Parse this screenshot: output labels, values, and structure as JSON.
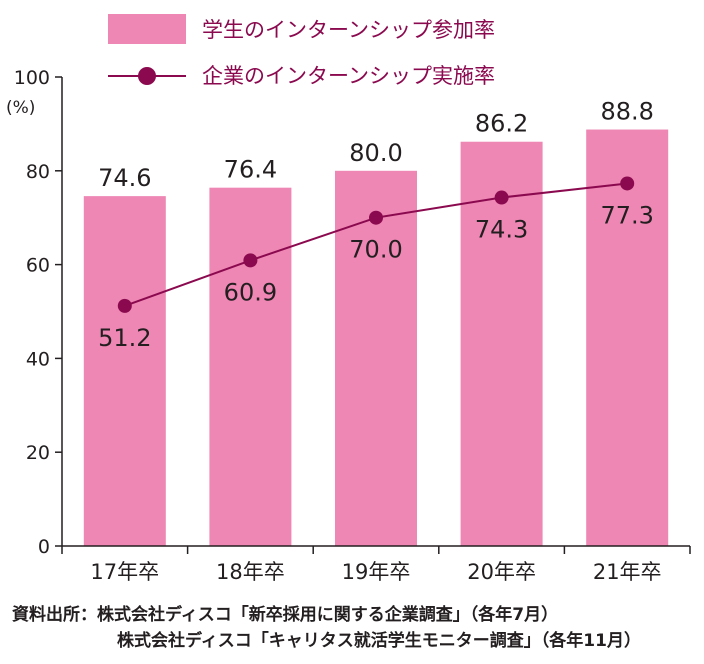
{
  "chart_data": {
    "type": "bar",
    "categories": [
      "17年卒",
      "18年卒",
      "19年卒",
      "20年卒",
      "21年卒"
    ],
    "series": [
      {
        "name": "学生のインターンシップ参加率",
        "type": "bar",
        "values": [
          74.6,
          76.4,
          80.0,
          86.2,
          88.8
        ],
        "color": "#ee87b4"
      },
      {
        "name": "企業のインターンシップ実施率",
        "type": "line",
        "values": [
          51.2,
          60.9,
          70.0,
          74.3,
          77.3
        ],
        "color": "#8b0a4f"
      }
    ],
    "bar_labels": [
      "74.6",
      "76.4",
      "80.0",
      "86.2",
      "88.8"
    ],
    "line_labels": [
      "51.2",
      "60.9",
      "70.0",
      "74.3",
      "77.3"
    ],
    "ylim": [
      0,
      100
    ],
    "yticks": [
      "0",
      "20",
      "40",
      "60",
      "80",
      "100"
    ],
    "yunit": "(%)",
    "legend_position": "top",
    "grid": false
  },
  "source": {
    "line1": "資料出所：株式会社ディスコ「新卒採用に関する企業調査」（各年7月）",
    "line2": "株式会社ディスコ「キャリタス就活学生モニター調査」（各年11月）"
  }
}
